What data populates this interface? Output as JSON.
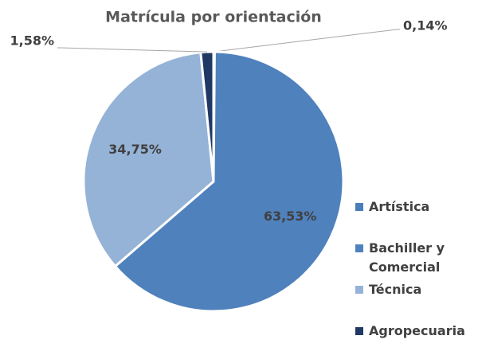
{
  "chart_data": {
    "type": "pie",
    "title": "Matrícula por orientación",
    "categories": [
      "Artística",
      "Bachiller y Comercial",
      "Técnica",
      "Agropecuaria"
    ],
    "values": [
      0.14,
      63.53,
      34.75,
      1.58
    ],
    "value_labels": [
      "0,14%",
      "63,53%",
      "34,75%",
      "1,58%"
    ],
    "colors": [
      "#4a7ebb",
      "#4f81bd",
      "#95b3d7",
      "#1f3864"
    ],
    "legend": "right"
  }
}
